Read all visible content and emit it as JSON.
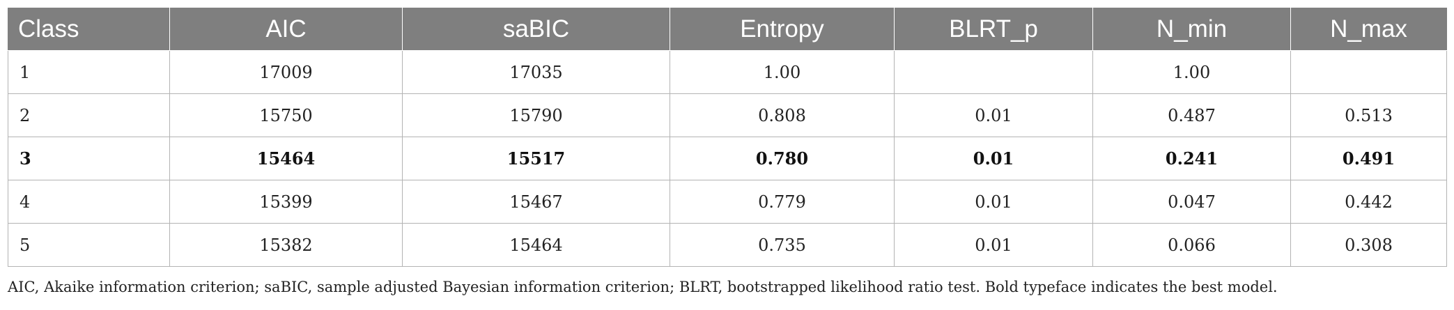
{
  "table": {
    "headers": [
      "Class",
      "AIC",
      "saBIC",
      "Entropy",
      "BLRT_p",
      "N_min",
      "N_max"
    ],
    "rows": [
      {
        "cells": [
          "1",
          "17009",
          "17035",
          "1.00",
          "",
          "1.00",
          ""
        ],
        "bold": false
      },
      {
        "cells": [
          "2",
          "15750",
          "15790",
          "0.808",
          "0.01",
          "0.487",
          "0.513"
        ],
        "bold": false
      },
      {
        "cells": [
          "3",
          "15464",
          "15517",
          "0.780",
          "0.01",
          "0.241",
          "0.491"
        ],
        "bold": true
      },
      {
        "cells": [
          "4",
          "15399",
          "15467",
          "0.779",
          "0.01",
          "0.047",
          "0.442"
        ],
        "bold": false
      },
      {
        "cells": [
          "5",
          "15382",
          "15464",
          "0.735",
          "0.01",
          "0.066",
          "0.308"
        ],
        "bold": false
      }
    ]
  },
  "footnote": "AIC, Akaike information criterion; saBIC, sample adjusted Bayesian information criterion; BLRT, bootstrapped likelihood ratio test. Bold typeface indicates the best model.",
  "colors": {
    "header_bg": "#7f7f7f",
    "header_text": "#ffffff",
    "grid_line": "#b3b3b3"
  }
}
